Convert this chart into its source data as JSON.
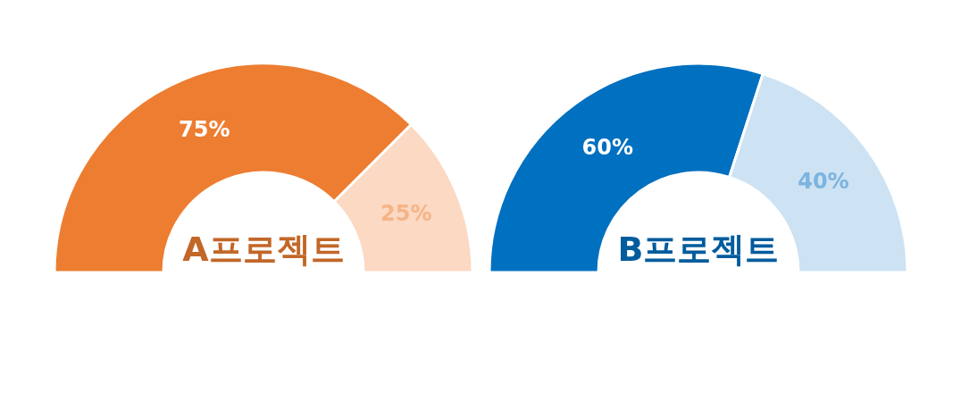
{
  "chart_data": [
    {
      "type": "donut",
      "title": "A프로젝트",
      "categories": [
        null,
        null
      ],
      "values": [
        75,
        25
      ],
      "colors": [
        "#ed7d31",
        "#fbd9c2"
      ],
      "value_labels": [
        "75%",
        "25%"
      ]
    },
    {
      "type": "donut",
      "title": "B프로젝트",
      "categories": [
        null,
        null
      ],
      "values": [
        60,
        40
      ],
      "colors": [
        "#0070c0",
        "#cde2f3"
      ],
      "value_labels": [
        "60%",
        "40%"
      ]
    }
  ]
}
